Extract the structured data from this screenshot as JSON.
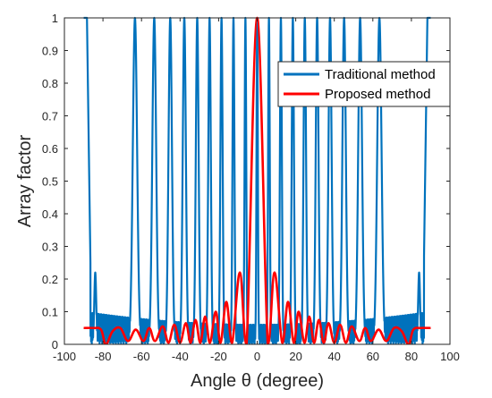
{
  "chart_data": {
    "type": "line",
    "title": "",
    "xlabel": "Angle θ (degree)",
    "ylabel": "Array factor",
    "xlim": [
      -100,
      100
    ],
    "ylim": [
      0,
      1
    ],
    "xticks": [
      -100,
      -80,
      -60,
      -40,
      -20,
      0,
      20,
      40,
      60,
      80,
      100
    ],
    "yticks": [
      0,
      0.1,
      0.2,
      0.3,
      0.4,
      0.5,
      0.6,
      0.7,
      0.8,
      0.9,
      1
    ],
    "xtick_labels": [
      "-100",
      "-80",
      "-60",
      "-40",
      "-20",
      "0",
      "20",
      "40",
      "60",
      "80",
      "100"
    ],
    "ytick_labels": [
      "0",
      "0.1",
      "0.2",
      "0.3",
      "0.4",
      "0.5",
      "0.6",
      "0.7",
      "0.8",
      "0.9",
      "1"
    ],
    "grid": false,
    "legend_position": "top-right",
    "series": [
      {
        "name": "Traditional method",
        "color": "#0072BD",
        "x_range": [
          -90,
          90
        ],
        "grating_lobe_angles": [
          -63.4,
          -53.4,
          -45.1,
          -37.8,
          -31.1,
          -24.7,
          -18.5,
          -12.3,
          -6.1,
          0,
          6.1,
          12.3,
          18.5,
          24.7,
          31.1,
          37.8,
          45.1,
          53.4,
          63.4
        ],
        "grating_lobe_peak": 1.0,
        "edge_lobe_angles": [
          -84,
          84
        ],
        "edge_lobe_peak": 0.22,
        "floor_sidelobe_level": 0.1,
        "endfire_value": 1.0
      },
      {
        "name": "Proposed method",
        "color": "#FF0000",
        "x_range": [
          -90,
          90
        ],
        "points": [
          [
            -90,
            0.05
          ],
          [
            -85,
            0.05
          ],
          [
            -81,
            0.045
          ],
          [
            -78.5,
            0.0
          ],
          [
            -75,
            0.04
          ],
          [
            -71,
            0.05
          ],
          [
            -67,
            0.01
          ],
          [
            -63,
            0.045
          ],
          [
            -59,
            0.01
          ],
          [
            -56,
            0.05
          ],
          [
            -53,
            0.01
          ],
          [
            -49,
            0.055
          ],
          [
            -46,
            0.005
          ],
          [
            -43,
            0.06
          ],
          [
            -40,
            0.005
          ],
          [
            -37,
            0.065
          ],
          [
            -34.5,
            0.005
          ],
          [
            -32,
            0.075
          ],
          [
            -29.5,
            0.005
          ],
          [
            -27,
            0.085
          ],
          [
            -24.5,
            0.005
          ],
          [
            -21.5,
            0.1
          ],
          [
            -19,
            0.005
          ],
          [
            -16,
            0.13
          ],
          [
            -13,
            0.005
          ],
          [
            -9,
            0.22
          ],
          [
            -5.5,
            0.0
          ],
          [
            0,
            1.0
          ],
          [
            5.5,
            0.0
          ],
          [
            9,
            0.22
          ],
          [
            13,
            0.005
          ],
          [
            16,
            0.13
          ],
          [
            19,
            0.005
          ],
          [
            21.5,
            0.1
          ],
          [
            24.5,
            0.005
          ],
          [
            27,
            0.085
          ],
          [
            29.5,
            0.005
          ],
          [
            32,
            0.075
          ],
          [
            34.5,
            0.005
          ],
          [
            37,
            0.065
          ],
          [
            40,
            0.005
          ],
          [
            43,
            0.06
          ],
          [
            46,
            0.005
          ],
          [
            49,
            0.055
          ],
          [
            53,
            0.01
          ],
          [
            56,
            0.05
          ],
          [
            59,
            0.01
          ],
          [
            63,
            0.045
          ],
          [
            67,
            0.01
          ],
          [
            71,
            0.05
          ],
          [
            75,
            0.04
          ],
          [
            78.5,
            0.0
          ],
          [
            81,
            0.045
          ],
          [
            85,
            0.05
          ],
          [
            90,
            0.05
          ]
        ]
      }
    ]
  }
}
